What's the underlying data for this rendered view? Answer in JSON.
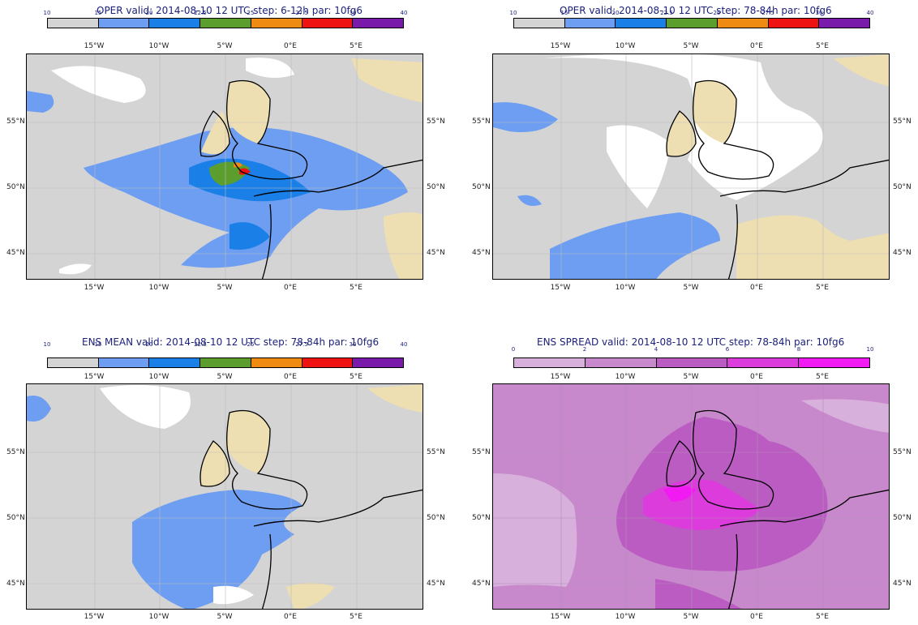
{
  "panels": [
    {
      "title": "OPER valid: 2014-08-10 12 UTC  step: 6-12h  par: 10fg6",
      "colorbar": {
        "ticks": [
          "10",
          "15",
          "20",
          "22.5",
          "25",
          "27.5",
          "30",
          "40"
        ],
        "colors": [
          "#d4d4d4",
          "#6d9ef2",
          "#1a7fe6",
          "#5c9e2e",
          "#ef8a12",
          "#ef1212",
          "#7a1aab"
        ]
      }
    },
    {
      "title": "OPER valid: 2014-08-10 12 UTC  step: 78-84h  par: 10fg6",
      "colorbar": {
        "ticks": [
          "10",
          "15",
          "20",
          "22.5",
          "25",
          "27.5",
          "30",
          "40"
        ],
        "colors": [
          "#d4d4d4",
          "#6d9ef2",
          "#1a7fe6",
          "#5c9e2e",
          "#ef8a12",
          "#ef1212",
          "#7a1aab"
        ]
      }
    },
    {
      "title": "ENS MEAN valid: 2014-08-10 12 UTC  step: 78-84h  par: 10fg6",
      "colorbar": {
        "ticks": [
          "10",
          "15",
          "20",
          "22.5",
          "25",
          "27.5",
          "30",
          "40"
        ],
        "colors": [
          "#d4d4d4",
          "#6d9ef2",
          "#1a7fe6",
          "#5c9e2e",
          "#ef8a12",
          "#ef1212",
          "#7a1aab"
        ]
      }
    },
    {
      "title": "ENS SPREAD  valid: 2014-08-10 12 UTC  step: 78-84h  par: 10fg6",
      "colorbar": {
        "ticks": [
          "0",
          "2",
          "4",
          "6",
          "8",
          "10"
        ],
        "colors": [
          "#d8b0dc",
          "#c888cc",
          "#bb5cc3",
          "#dc3cdc",
          "#f21af2"
        ]
      }
    }
  ],
  "axes": {
    "lon_labels": [
      "15°W",
      "10°W",
      "5°W",
      "0°E",
      "5°E"
    ],
    "lat_labels": [
      "55°N",
      "50°N",
      "45°N"
    ]
  }
}
